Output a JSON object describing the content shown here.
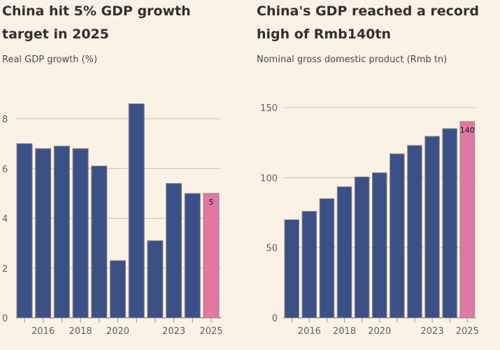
{
  "colors": {
    "background": "#fbf1e7",
    "bar": "#3a5086",
    "highlight": "#e178a3",
    "bar_stroke": "#8b8580",
    "grid": "#ccc1b7"
  },
  "chart_data": [
    {
      "type": "bar",
      "title": "China hit 5% GDP growth target in 2025",
      "subtitle": "Real GDP growth (%)",
      "xlabel": "",
      "ylabel": "Real GDP growth (%)",
      "categories": [
        "2015",
        "2016",
        "2017",
        "2018",
        "2019",
        "2020",
        "2021",
        "2022",
        "2023",
        "2024",
        "2025"
      ],
      "values": [
        7.0,
        6.8,
        6.9,
        6.8,
        6.1,
        2.3,
        8.6,
        3.1,
        5.4,
        5.0,
        5.0
      ],
      "highlight_index": 10,
      "data_labels": [
        {
          "index": 10,
          "text": "5"
        }
      ],
      "ylim": [
        0,
        8.8
      ],
      "yticks": [
        0,
        2,
        4,
        6,
        8
      ],
      "xtick_labels": [
        {
          "index": 1,
          "text": "2016"
        },
        {
          "index": 3,
          "text": "2018"
        },
        {
          "index": 5,
          "text": "2020"
        },
        {
          "index": 8,
          "text": "2023"
        },
        {
          "index": 10,
          "text": "2025"
        }
      ],
      "grid": true,
      "legend": "none"
    },
    {
      "type": "bar",
      "title": "China's GDP reached a record high of Rmb140tn",
      "subtitle": "Nominal gross domestic product (Rmb tn)",
      "xlabel": "",
      "ylabel": "Nominal gross domestic product (Rmb tn)",
      "categories": [
        "2015",
        "2016",
        "2017",
        "2018",
        "2019",
        "2020",
        "2021",
        "2022",
        "2023",
        "2024",
        "2025"
      ],
      "values": [
        70,
        76,
        85,
        93.5,
        100.5,
        103.5,
        117,
        123,
        129.5,
        135,
        140
      ],
      "highlight_index": 10,
      "data_labels": [
        {
          "index": 10,
          "text": "140"
        }
      ],
      "ylim": [
        0,
        150
      ],
      "yticks": [
        0,
        50,
        100,
        150
      ],
      "xtick_labels": [
        {
          "index": 1,
          "text": "2016"
        },
        {
          "index": 3,
          "text": "2018"
        },
        {
          "index": 5,
          "text": "2020"
        },
        {
          "index": 8,
          "text": "2023"
        },
        {
          "index": 10,
          "text": "2025"
        }
      ],
      "grid": true,
      "legend": "none"
    }
  ]
}
